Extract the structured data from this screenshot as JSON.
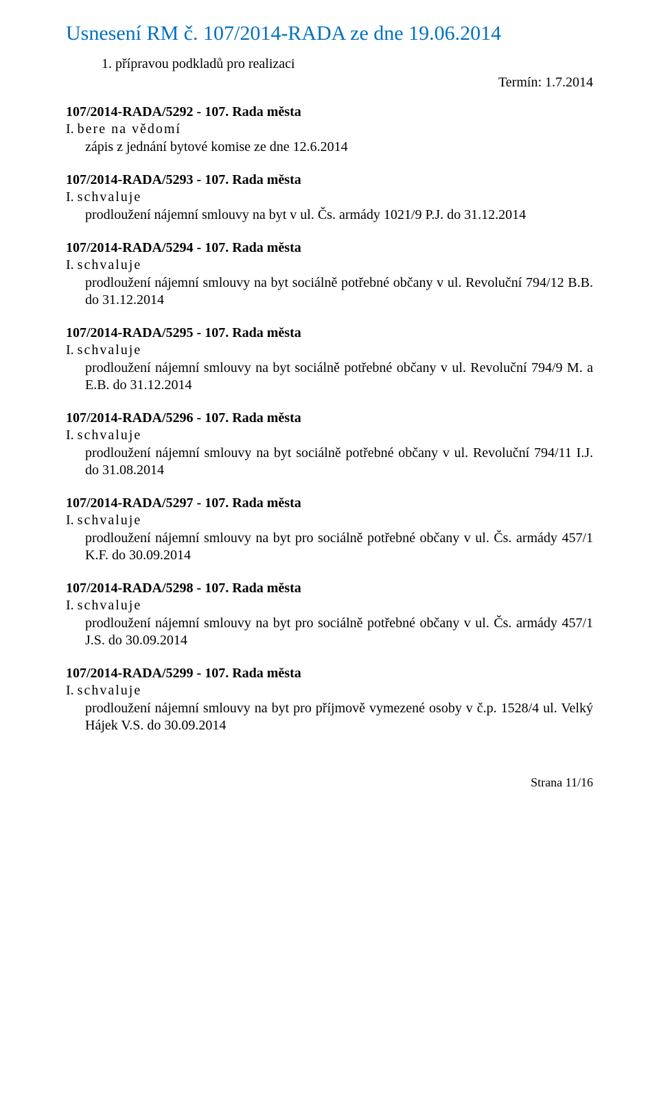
{
  "doc": {
    "title": "Usnesení RM č. 107/2014-RADA ze dne 19.06.2014",
    "item1": "1. přípravou podkladů pro realizaci",
    "termLabel": "Termín: 1.7.2014",
    "footer": "Strana 11/16"
  },
  "res": [
    {
      "heading": "107/2014-RADA/5292 - 107. Rada města",
      "verbPrefix": "I.",
      "verb": "bere na vědomí",
      "body": "zápis z jednání bytové komise ze dne 12.6.2014"
    },
    {
      "heading": "107/2014-RADA/5293 - 107. Rada města",
      "verbPrefix": "I.",
      "verb": "schvaluje",
      "body": "prodloužení nájemní smlouvy na byt v ul. Čs. armády 1021/9 P.J. do 31.12.2014"
    },
    {
      "heading": "107/2014-RADA/5294 - 107. Rada města",
      "verbPrefix": "I.",
      "verb": "schvaluje",
      "body": "prodloužení nájemní smlouvy na byt sociálně potřebné občany v ul. Revoluční 794/12 B.B. do 31.12.2014"
    },
    {
      "heading": "107/2014-RADA/5295 - 107. Rada města",
      "verbPrefix": "I.",
      "verb": "schvaluje",
      "body": "prodloužení nájemní smlouvy na byt sociálně potřebné občany v ul. Revoluční  794/9 M. a E.B. do 31.12.2014"
    },
    {
      "heading": "107/2014-RADA/5296 - 107. Rada města",
      "verbPrefix": "I.",
      "verb": "schvaluje",
      "body": "prodloužení nájemní smlouvy na byt sociálně potřebné občany v ul. Revoluční 794/11 I.J. do 31.08.2014"
    },
    {
      "heading": "107/2014-RADA/5297 - 107. Rada města",
      "verbPrefix": "I.",
      "verb": "schvaluje",
      "body": "prodloužení nájemní smlouvy na byt pro sociálně potřebné občany v ul. Čs. armády 457/1 K.F.  do 30.09.2014"
    },
    {
      "heading": "107/2014-RADA/5298 - 107. Rada města",
      "verbPrefix": "I.",
      "verb": "schvaluje",
      "body": "prodloužení nájemní smlouvy na byt pro sociálně potřebné občany v ul. Čs. armády 457/1 J.S.  do 30.09.2014"
    },
    {
      "heading": "107/2014-RADA/5299 - 107. Rada města",
      "verbPrefix": "I.",
      "verb": "schvaluje",
      "body": "prodloužení nájemní smlouvy na byt pro příjmově vymezené osoby v č.p. 1528/4 ul. Velký Hájek V.S. do 30.09.2014"
    }
  ]
}
